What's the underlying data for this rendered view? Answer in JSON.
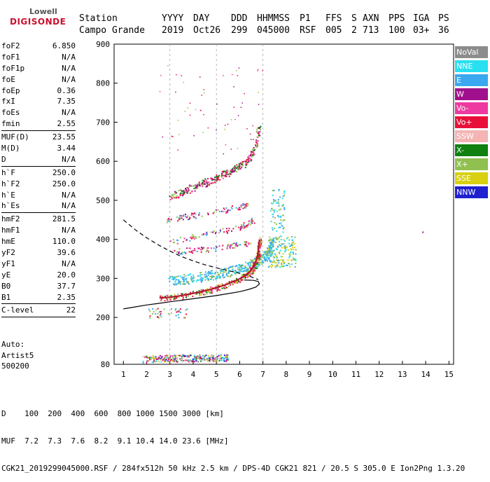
{
  "logo": {
    "line1": "Lowell",
    "line2": "DIGISONDE"
  },
  "header": {
    "row1": [
      "Station",
      "YYYY",
      "DAY",
      "DDD",
      "HHMMSS",
      "P1",
      "FFS",
      "S",
      "AXN",
      "PPS",
      "IGA",
      "PS"
    ],
    "row2": [
      "Campo Grande",
      "2019",
      "Oct26",
      "299",
      "045000",
      "RSF",
      "005",
      "2",
      "713",
      "100",
      "03+",
      "36"
    ]
  },
  "params": {
    "group1": [
      {
        "k": "foF2",
        "v": "6.850"
      },
      {
        "k": "foF1",
        "v": "N/A"
      },
      {
        "k": "foF1p",
        "v": "N/A"
      },
      {
        "k": "foE",
        "v": "N/A"
      },
      {
        "k": "foEp",
        "v": "0.36"
      },
      {
        "k": "fxI",
        "v": "7.35"
      },
      {
        "k": "foEs",
        "v": "N/A"
      },
      {
        "k": "fmin",
        "v": "2.55"
      }
    ],
    "group2": [
      {
        "k": "MUF(D)",
        "v": "23.55"
      },
      {
        "k": "M(D)",
        "v": "3.44"
      },
      {
        "k": "D",
        "v": "N/A"
      }
    ],
    "group3": [
      {
        "k": "h`F",
        "v": "250.0"
      },
      {
        "k": "h`F2",
        "v": "250.0"
      },
      {
        "k": "h`E",
        "v": "N/A"
      },
      {
        "k": "h`Es",
        "v": "N/A"
      }
    ],
    "group4": [
      {
        "k": "hmF2",
        "v": "281.5"
      },
      {
        "k": "hmF1",
        "v": "N/A"
      },
      {
        "k": "hmE",
        "v": "110.0"
      },
      {
        "k": "yF2",
        "v": "39.6"
      },
      {
        "k": "yF1",
        "v": "N/A"
      },
      {
        "k": "yE",
        "v": "20.0"
      },
      {
        "k": "B0",
        "v": "37.7"
      },
      {
        "k": "B1",
        "v": "2.35"
      }
    ],
    "group5": [
      {
        "k": "C-level",
        "v": "22"
      }
    ]
  },
  "auto": [
    "Auto:",
    "Artist5",
    "500200"
  ],
  "legend": [
    {
      "label": "NoVal",
      "color": "#8c8c8c"
    },
    {
      "label": "NNE",
      "color": "#28e0f0"
    },
    {
      "label": "E",
      "color": "#3aa8f0"
    },
    {
      "label": "W",
      "color": "#a0108c"
    },
    {
      "label": "Vo-",
      "color": "#ee3aa0"
    },
    {
      "label": "Vo+",
      "color": "#e8103a"
    },
    {
      "label": "SSW",
      "color": "#f4b4b4"
    },
    {
      "label": "X-",
      "color": "#108010"
    },
    {
      "label": "X+",
      "color": "#90c050"
    },
    {
      "label": "SSE",
      "color": "#d8d010"
    },
    {
      "label": "NNW",
      "color": "#2020d0"
    }
  ],
  "footer": {
    "line1": "D    100  200  400  600  800 1000 1500 3000 [km]",
    "line2": "MUF  7.2  7.3  7.6  8.2  9.1 10.4 14.0 23.6 [MHz]",
    "line3": "CGK21_2019299045000.RSF / 284fx512h 50 kHz 2.5 km / DPS-4D CGK21 821 / 20.5 S 305.0 E Ion2Png 1.3.20"
  },
  "chart_data": {
    "type": "scatter",
    "xlabel": "",
    "ylabel": "",
    "xlim": [
      0.6,
      15.2
    ],
    "ylim": [
      80,
      900
    ],
    "x_ticks": [
      1,
      2,
      3,
      4,
      5,
      6,
      7,
      8,
      9,
      10,
      11,
      12,
      13,
      14,
      15
    ],
    "y_ticks": [
      80,
      200,
      300,
      400,
      500,
      600,
      700,
      800,
      900
    ],
    "grid_x_dashed": [
      3,
      5,
      7
    ],
    "x_ticks_labeled": [
      1,
      2,
      3,
      4,
      5,
      6,
      7,
      8,
      9,
      10,
      11,
      12,
      13,
      14,
      15
    ],
    "y_ticks_labeled": [
      80,
      200,
      300,
      400,
      500,
      600,
      700,
      800,
      900
    ],
    "echo_traces": [
      {
        "name": "F-layer O trace",
        "color": "#e8103a",
        "x": [
          2.55,
          3.0,
          3.5,
          4.0,
          4.5,
          5.0,
          5.5,
          5.9,
          6.2,
          6.45,
          6.6,
          6.7,
          6.78,
          6.82,
          6.85
        ],
        "y": [
          250,
          252,
          256,
          262,
          268,
          276,
          286,
          296,
          306,
          318,
          330,
          345,
          360,
          380,
          400
        ]
      },
      {
        "name": "F-layer X trace",
        "color": "#3aa8f0",
        "x": [
          3.0,
          3.5,
          4.0,
          4.5,
          5.0,
          5.5,
          6.0,
          6.4,
          6.8,
          7.1,
          7.3,
          7.35
        ],
        "y": [
          295,
          298,
          302,
          306,
          312,
          318,
          326,
          334,
          344,
          358,
          375,
          395
        ]
      },
      {
        "name": "second hop",
        "color": "#e8103a",
        "x": [
          2.9,
          3.5,
          4.0,
          4.5,
          5.0,
          5.5,
          6.0,
          6.4,
          6.7,
          6.8
        ],
        "y": [
          510,
          522,
          534,
          546,
          558,
          572,
          588,
          606,
          640,
          690
        ]
      },
      {
        "name": "E-layer region",
        "color": "#90c050",
        "x": [
          1.9,
          2.5,
          3.0,
          3.5,
          4.0,
          4.5,
          5.0,
          5.5
        ],
        "y": [
          93,
          95,
          96,
          97,
          97,
          97,
          98,
          98
        ]
      }
    ],
    "profile_curves": [
      {
        "name": "true height profile",
        "style": "solid",
        "x": [
          1.0,
          1.5,
          2.0,
          2.5,
          3.0,
          3.5,
          4.0,
          4.5,
          5.0,
          5.5,
          6.0,
          6.4,
          6.7,
          6.85,
          6.8,
          6.6,
          6.2
        ],
        "y": [
          222,
          227,
          232,
          236,
          240,
          244,
          248,
          252,
          256,
          261,
          266,
          272,
          278,
          286,
          292,
          295,
          296
        ]
      },
      {
        "name": "model profile",
        "style": "dashed",
        "x": [
          1.0,
          1.5,
          2.0,
          2.5,
          3.0,
          3.5,
          4.0,
          4.5,
          5.0,
          5.5,
          6.0,
          6.4,
          6.8
        ],
        "y": [
          450,
          425,
          404,
          386,
          370,
          356,
          345,
          335,
          327,
          320,
          313,
          306,
          297
        ]
      }
    ],
    "lone_points": [
      {
        "x": 13.85,
        "y": 420,
        "color": "#a0108c"
      }
    ]
  }
}
